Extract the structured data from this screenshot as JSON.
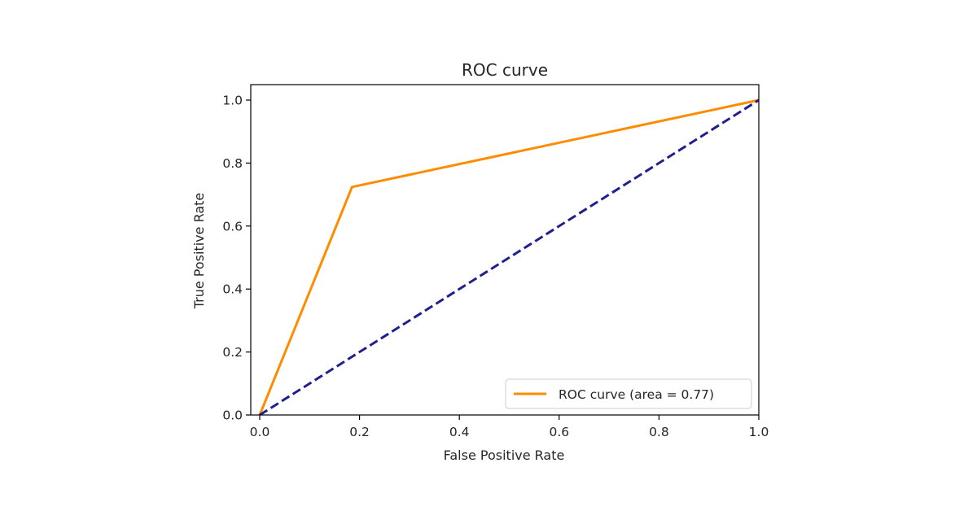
{
  "chart_data": {
    "type": "line",
    "title": "ROC curve",
    "xlabel": "False Positive Rate",
    "ylabel": "True Positive Rate",
    "xlim": [
      0.0,
      1.0
    ],
    "ylim": [
      0.0,
      1.05
    ],
    "x_ticks": [
      0.0,
      0.2,
      0.4,
      0.6,
      0.8,
      1.0
    ],
    "y_ticks": [
      0.0,
      0.2,
      0.4,
      0.6,
      0.8,
      1.0
    ],
    "x_tick_labels": [
      "0.0",
      "0.2",
      "0.4",
      "0.6",
      "0.8",
      "1.0"
    ],
    "y_tick_labels": [
      "0.0",
      "0.2",
      "0.4",
      "0.6",
      "0.8",
      "1.0"
    ],
    "grid": false,
    "legend_position": "lower-right",
    "series": [
      {
        "name": "ROC curve (area = 0.77)",
        "x": [
          0.0,
          0.185,
          1.0
        ],
        "y": [
          0.0,
          0.724,
          1.0
        ],
        "color": "#ff8c00",
        "style": "solid"
      },
      {
        "x": [
          0.0,
          1.0
        ],
        "y": [
          0.0,
          1.0
        ],
        "color": "#1f1f8f",
        "style": "dashed"
      }
    ]
  }
}
